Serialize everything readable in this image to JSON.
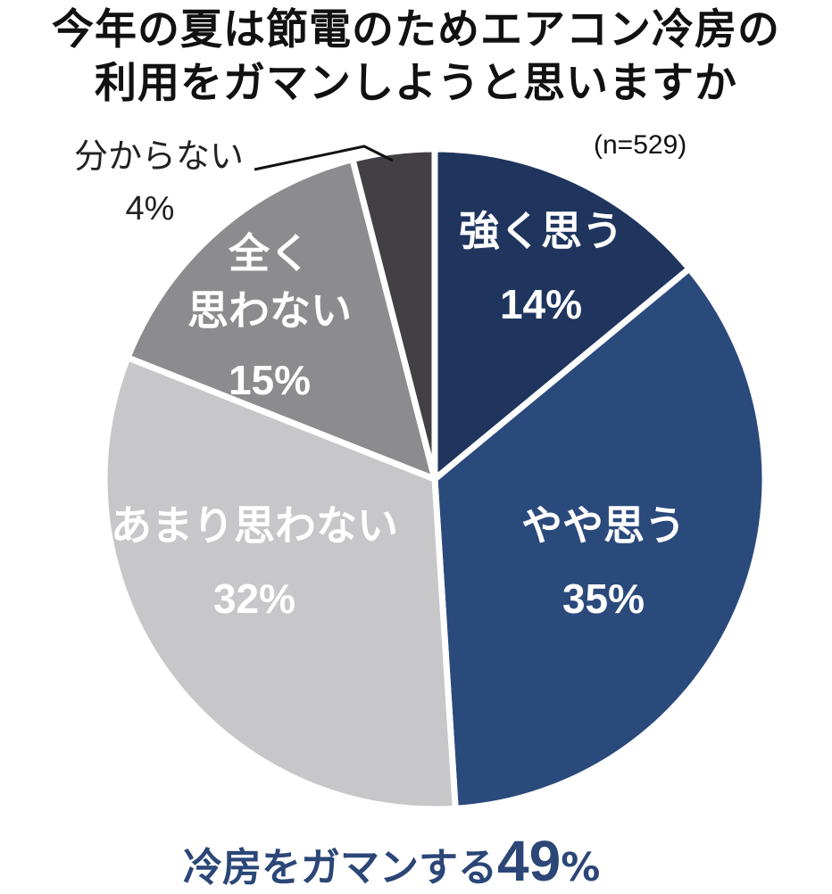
{
  "chart_data": {
    "type": "pie",
    "title": "今年の夏は節電のためエアコン冷房の利用をガマンしようと思いますか",
    "title_lines": [
      "今年の夏は節電のためエアコン冷房の",
      "利用をガマンしようと思いますか"
    ],
    "sample_size": "(n=529)",
    "slices": [
      {
        "label": "強く思う",
        "label_lines": [
          "強く思う"
        ],
        "value": 14,
        "display": "14%",
        "color": "#1f355e",
        "text_color": "#ffffff"
      },
      {
        "label": "やや思う",
        "label_lines": [
          "やや思う"
        ],
        "value": 35,
        "display": "35%",
        "color": "#2b4a7c",
        "text_color": "#ffffff"
      },
      {
        "label": "あまり思わない",
        "label_lines": [
          "あまり思わない"
        ],
        "value": 32,
        "display": "32%",
        "color": "#c7c7c9",
        "text_color": "#ffffff"
      },
      {
        "label": "全く思わない",
        "label_lines": [
          "全く",
          "思わない"
        ],
        "value": 15,
        "display": "15%",
        "color": "#8c8c8e",
        "text_color": "#ffffff"
      },
      {
        "label": "分からない",
        "label_lines": [
          "分からない"
        ],
        "value": 4,
        "display": "4%",
        "color": "#434045",
        "text_color": "#222222"
      }
    ],
    "summary": {
      "text": "冷房をガマンする",
      "value": "49",
      "unit": "%",
      "color": "#2b4677"
    }
  }
}
